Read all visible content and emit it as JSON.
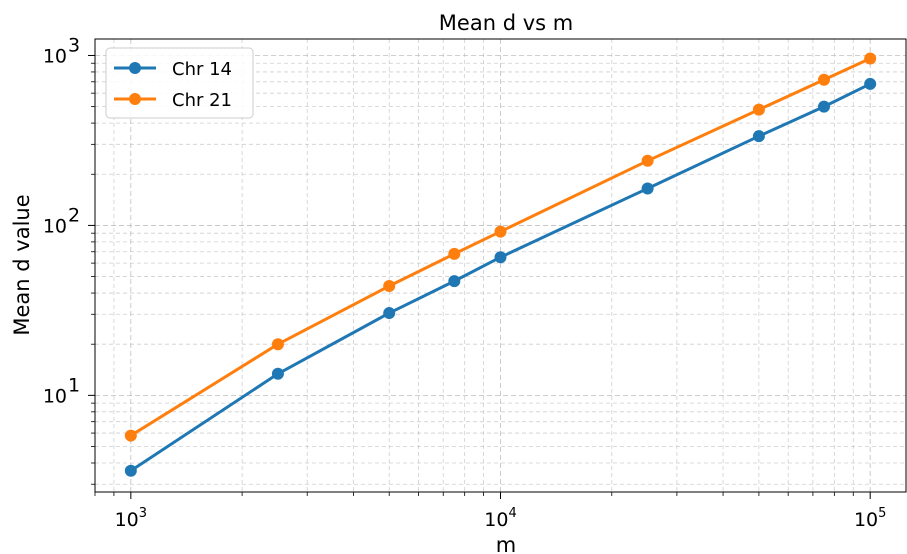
{
  "chart_data": {
    "type": "line",
    "title": "Mean d vs m",
    "xlabel": "m",
    "ylabel": "Mean d value",
    "xscale": "log",
    "yscale": "log",
    "xlim": [
      800,
      125000
    ],
    "ylim": [
      2.7,
      1250
    ],
    "grid": true,
    "legend_position": "top-left",
    "x_ticks": [
      {
        "value": 1000,
        "base": "10",
        "exp": "3"
      },
      {
        "value": 10000,
        "base": "10",
        "exp": "4"
      },
      {
        "value": 100000,
        "base": "10",
        "exp": "5"
      }
    ],
    "y_ticks": [
      {
        "value": 10,
        "base": "10",
        "exp": "1"
      },
      {
        "value": 100,
        "base": "10",
        "exp": "2"
      },
      {
        "value": 1000,
        "base": "10",
        "exp": "3"
      }
    ],
    "x": [
      1000,
      2500,
      5000,
      7500,
      10000,
      25000,
      50000,
      75000,
      100000
    ],
    "series": [
      {
        "name": "Chr 14",
        "color": "#1f77b4",
        "values": [
          3.6,
          13.4,
          30.5,
          47,
          65,
          165,
          335,
          500,
          680
        ]
      },
      {
        "name": "Chr 21",
        "color": "#ff7f0e",
        "values": [
          5.8,
          20,
          44,
          68,
          92,
          240,
          480,
          720,
          960
        ]
      }
    ]
  }
}
